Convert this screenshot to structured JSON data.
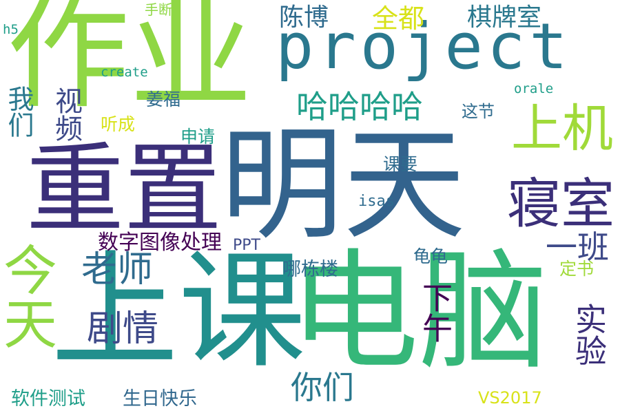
{
  "words": [
    {
      "text": "作业",
      "color": "#8fd744"
    },
    {
      "text": "project",
      "color": "#2a788e"
    },
    {
      "text": "明天",
      "color": "#33638d"
    },
    {
      "text": "重置",
      "color": "#3b2f79"
    },
    {
      "text": "上课",
      "color": "#218f8d"
    },
    {
      "text": "电脑",
      "color": "#35b779"
    },
    {
      "text": "今天",
      "color": "#8fd744"
    },
    {
      "text": "上机",
      "color": "#a0da39"
    },
    {
      "text": "寝室",
      "color": "#3b2f79"
    },
    {
      "text": "哈哈哈哈",
      "color": "#1f9e89"
    },
    {
      "text": "陈博",
      "color": "#2f6b8e"
    },
    {
      "text": "全都",
      "color": "#d8e219"
    },
    {
      "text": "棋牌室",
      "color": "#2a788e"
    },
    {
      "text": "视频",
      "color": "#3e4a89"
    },
    {
      "text": "我们",
      "color": "#2a788e"
    },
    {
      "text": "老师",
      "color": "#2f6b8e"
    },
    {
      "text": "剧情",
      "color": "#3e4a89"
    },
    {
      "text": "下午",
      "color": "#440154"
    },
    {
      "text": "实验",
      "color": "#3b2f79"
    },
    {
      "text": "一班",
      "color": "#3e4a89"
    },
    {
      "text": "你们",
      "color": "#2a788e"
    },
    {
      "text": "软件测试",
      "color": "#1f9e89"
    },
    {
      "text": "生日快乐",
      "color": "#31688e"
    },
    {
      "text": "数字图像处理",
      "color": "#440154"
    },
    {
      "text": "PPT",
      "color": "#3e4a89"
    },
    {
      "text": "哪栋楼",
      "color": "#2f6b8e"
    },
    {
      "text": "龟龟",
      "color": "#2f6b8e"
    },
    {
      "text": "定书",
      "color": "#a0da39"
    },
    {
      "text": "VS2017",
      "color": "#d8e219"
    },
    {
      "text": "isas",
      "color": "#2f6b8e"
    },
    {
      "text": "课要",
      "color": "#2f6b8e"
    },
    {
      "text": "申请",
      "color": "#1f9e89"
    },
    {
      "text": "姜福",
      "color": "#2f6b8e"
    },
    {
      "text": "听成",
      "color": "#d8e219"
    },
    {
      "text": "这节",
      "color": "#2f6b8e"
    },
    {
      "text": "orale",
      "color": "#1f9e89"
    },
    {
      "text": "create",
      "color": "#1f9e89"
    },
    {
      "text": "手断",
      "color": "#8fd744"
    },
    {
      "text": "h5",
      "color": "#1f9e89"
    }
  ]
}
